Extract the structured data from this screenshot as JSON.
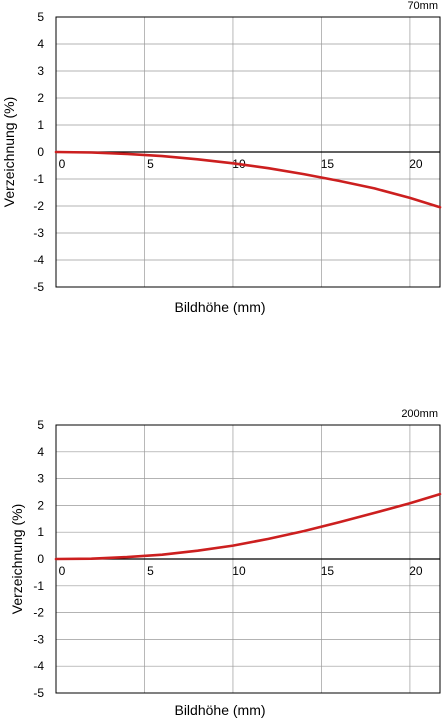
{
  "chart_data": [
    {
      "type": "line",
      "title": "",
      "corner_label": "70mm",
      "xlabel": "Bildhöhe (mm)",
      "ylabel": "Verzeichnung (%)",
      "xlim": [
        0,
        21.7
      ],
      "ylim": [
        -5,
        5
      ],
      "x_ticks": [
        0,
        5,
        10,
        15,
        20
      ],
      "y_ticks": [
        5,
        4,
        3,
        2,
        1,
        0,
        -1,
        -2,
        -3,
        -4,
        -5
      ],
      "grid": true,
      "color": "#cc1f1f",
      "series": [
        {
          "x": [
            0,
            2,
            4,
            6,
            8,
            10,
            12,
            14,
            16,
            18,
            20,
            21.7
          ],
          "values": [
            0,
            -0.02,
            -0.07,
            -0.15,
            -0.27,
            -0.42,
            -0.6,
            -0.82,
            -1.07,
            -1.35,
            -1.7,
            -2.05
          ]
        }
      ]
    },
    {
      "type": "line",
      "title": "",
      "corner_label": "200mm",
      "xlabel": "Bildhöhe (mm)",
      "ylabel": "Verzeichnung (%)",
      "xlim": [
        0,
        21.7
      ],
      "ylim": [
        -5,
        5
      ],
      "x_ticks": [
        0,
        5,
        10,
        15,
        20
      ],
      "y_ticks": [
        5,
        4,
        3,
        2,
        1,
        0,
        -1,
        -2,
        -3,
        -4,
        -5
      ],
      "grid": true,
      "color": "#cc1f1f",
      "series": [
        {
          "x": [
            0,
            2,
            4,
            6,
            8,
            10,
            12,
            14,
            16,
            18,
            20,
            21.7
          ],
          "values": [
            0,
            0.01,
            0.07,
            0.16,
            0.31,
            0.5,
            0.75,
            1.04,
            1.37,
            1.72,
            2.08,
            2.42
          ]
        }
      ]
    }
  ]
}
